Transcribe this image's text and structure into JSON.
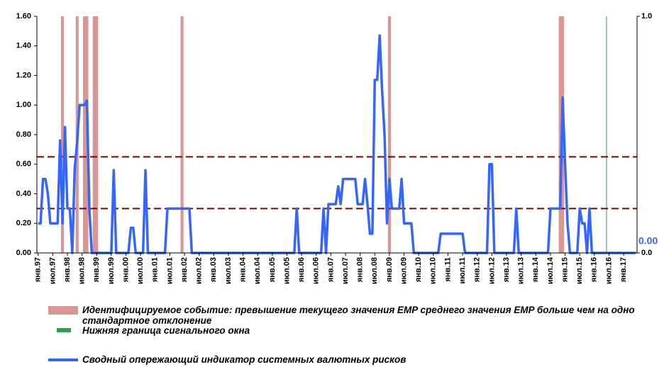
{
  "chart_data": {
    "type": "line",
    "categories": [
      "янв.97",
      null,
      null,
      null,
      null,
      null,
      "июл.97",
      null,
      null,
      null,
      null,
      null,
      "янв.98",
      null,
      null,
      null,
      null,
      null,
      "июл.98",
      null,
      null,
      null,
      null,
      null,
      "янв.99",
      null,
      null,
      null,
      null,
      null,
      "июл.99",
      null,
      null,
      null,
      null,
      null,
      "янв.00",
      null,
      null,
      null,
      null,
      null,
      "июл.00",
      null,
      null,
      null,
      null,
      null,
      "янв.01",
      null,
      null,
      null,
      null,
      null,
      "июл.01",
      null,
      null,
      null,
      null,
      null,
      "янв.02",
      null,
      null,
      null,
      null,
      null,
      "июл.02",
      null,
      null,
      null,
      null,
      null,
      "янв.03",
      null,
      null,
      null,
      null,
      null,
      "июл.03",
      null,
      null,
      null,
      null,
      null,
      "янв.04",
      null,
      null,
      null,
      null,
      null,
      "июл.04",
      null,
      null,
      null,
      null,
      null,
      "янв.05",
      null,
      null,
      null,
      null,
      null,
      "июл.05",
      null,
      null,
      null,
      null,
      null,
      "янв.06",
      null,
      null,
      null,
      null,
      null,
      "июл.06",
      null,
      null,
      null,
      null,
      null,
      "янв.07",
      null,
      null,
      null,
      null,
      null,
      "июл.07",
      null,
      null,
      null,
      null,
      null,
      "янв.08",
      null,
      null,
      null,
      null,
      null,
      "июл.08",
      null,
      null,
      null,
      null,
      null,
      "янв.09",
      null,
      null,
      null,
      null,
      null,
      "июл.09",
      null,
      null,
      null,
      null,
      null,
      "янв.10",
      null,
      null,
      null,
      null,
      null,
      "июл.10",
      null,
      null,
      null,
      null,
      null,
      "янв.11",
      null,
      null,
      null,
      null,
      null,
      "июл.11",
      null,
      null,
      null,
      null,
      null,
      "янв.12",
      null,
      null,
      null,
      null,
      null,
      "июл.12",
      null,
      null,
      null,
      null,
      null,
      "янв.13",
      null,
      null,
      null,
      null,
      null,
      "июл.13",
      null,
      null,
      null,
      null,
      null,
      "янв.14",
      null,
      null,
      null,
      null,
      null,
      "июл.14",
      null,
      null,
      null,
      null,
      null,
      "янв.15",
      null,
      null,
      null,
      null,
      null,
      "июл.15",
      null,
      null,
      null,
      null,
      null,
      "янв.16",
      null,
      null,
      null,
      null,
      null,
      "июл.16",
      null,
      null,
      null,
      null,
      null,
      "янв.17",
      null,
      null,
      null,
      null,
      null
    ],
    "series": [
      {
        "name": "Идентифицируемое событие: превышение текущего значения EMP среднего значения EMP больше чем на одно стандартное отклонение",
        "type": "bar",
        "axis": "y2",
        "color": "#d99694",
        "values": [
          0,
          0,
          0,
          0,
          0,
          0,
          0,
          0,
          0,
          0,
          1,
          0,
          0,
          0,
          0,
          0,
          1,
          0,
          0,
          1,
          1,
          0,
          0,
          1,
          1,
          0,
          0,
          0,
          0,
          0,
          0,
          0,
          0,
          0,
          0,
          0,
          0,
          0,
          0,
          0,
          0,
          0,
          0,
          0,
          0,
          0,
          0,
          0,
          0,
          0,
          0,
          0,
          0,
          0,
          0,
          0,
          0,
          0,
          0,
          1,
          0,
          0,
          0,
          0,
          0,
          0,
          0,
          0,
          0,
          0,
          0,
          0,
          0,
          0,
          0,
          0,
          0,
          0,
          0,
          0,
          0,
          0,
          0,
          0,
          0,
          0,
          0,
          0,
          0,
          0,
          0,
          0,
          0,
          0,
          0,
          0,
          0,
          0,
          0,
          0,
          0,
          0,
          0,
          0,
          0,
          0,
          0,
          0,
          0,
          0,
          0,
          0,
          0,
          0,
          0,
          0,
          0,
          0,
          0,
          0,
          0,
          0,
          0,
          0,
          0,
          0,
          0,
          0,
          0,
          0,
          0,
          0,
          0,
          0,
          0,
          0,
          0,
          0,
          0,
          0,
          0,
          0,
          0,
          0,
          1,
          0,
          0,
          0,
          0,
          0,
          0,
          0,
          0,
          0,
          0,
          0,
          0,
          0,
          0,
          0,
          0,
          0,
          0,
          0,
          0,
          0,
          0,
          0,
          0,
          0,
          0,
          0,
          0,
          0,
          0,
          0,
          0,
          0,
          0,
          0,
          0,
          0,
          0,
          0,
          0,
          0,
          0,
          0,
          0,
          0,
          0,
          0,
          0,
          0,
          0,
          0,
          0,
          0,
          0,
          0,
          0,
          0,
          0,
          0,
          0,
          0,
          0,
          0,
          0,
          0,
          0,
          0,
          0,
          0,
          1,
          1,
          0,
          0,
          0,
          0,
          0,
          0,
          0,
          0,
          0,
          0,
          0,
          0,
          0,
          0,
          0,
          0,
          0,
          0,
          0,
          0,
          0,
          0,
          0,
          0,
          0,
          0,
          0,
          0,
          0,
          0
        ]
      },
      {
        "name": "Нижняя граница сигнального окна",
        "type": "bar",
        "axis": "y2",
        "color": "#2e9e4f",
        "values": [
          0,
          0,
          0,
          0,
          0,
          0,
          0,
          0,
          0,
          0,
          0,
          0,
          0,
          0,
          0,
          0,
          0,
          0,
          0,
          0,
          0,
          0,
          0,
          0,
          0,
          0,
          0,
          0,
          0,
          0,
          0,
          0,
          0,
          0,
          0,
          0,
          0,
          0,
          0,
          0,
          0,
          0,
          0,
          0,
          0,
          0,
          0,
          0,
          0,
          0,
          0,
          0,
          0,
          0,
          0,
          0,
          0,
          0,
          0,
          0,
          0,
          0,
          0,
          0,
          0,
          0,
          0,
          0,
          0,
          0,
          0,
          0,
          0,
          0,
          0,
          0,
          0,
          0,
          0,
          0,
          0,
          0,
          0,
          0,
          0,
          0,
          0,
          0,
          0,
          0,
          0,
          0,
          0,
          0,
          0,
          0,
          0,
          0,
          0,
          0,
          0,
          0,
          0,
          0,
          0,
          0,
          0,
          0,
          0,
          0,
          0,
          0,
          0,
          0,
          0,
          0,
          0,
          0,
          0,
          0,
          0,
          0,
          0,
          0,
          0,
          0,
          0,
          0,
          0,
          0,
          0,
          0,
          0,
          0,
          0,
          0,
          0,
          0,
          0,
          0,
          0,
          0,
          0,
          0,
          0,
          0,
          0,
          0,
          0,
          0,
          0,
          0,
          0,
          0,
          0,
          0,
          0,
          0,
          0,
          0,
          0,
          0,
          0,
          0,
          0,
          0,
          0,
          0,
          0,
          0,
          0,
          0,
          0,
          0,
          0,
          0,
          0,
          0,
          0,
          0,
          0,
          0,
          0,
          0,
          0,
          0,
          0,
          0,
          0,
          0,
          0,
          0,
          0,
          0,
          0,
          0,
          0,
          0,
          0,
          0,
          0,
          0,
          0,
          0,
          0,
          0,
          0,
          0,
          0,
          0,
          0,
          0,
          0,
          0,
          0,
          0,
          0,
          0,
          0,
          0,
          0,
          0,
          0,
          0,
          0,
          0,
          0,
          0,
          0,
          0,
          0,
          0,
          0,
          1,
          0,
          0,
          0,
          0,
          0,
          0,
          0,
          0,
          0,
          0,
          0,
          0
        ]
      },
      {
        "name": "Сводный опережающий индикатор системных валютных рисков",
        "type": "line",
        "color": "#3366ff",
        "end_label": "0.00",
        "values": [
          0.2,
          0.2,
          0.5,
          0.5,
          0.4,
          0.2,
          0.2,
          0.2,
          0.2,
          0.76,
          0.2,
          0.85,
          0.3,
          0.3,
          0,
          0.57,
          0.75,
          1.0,
          1.0,
          1.0,
          1.03,
          0.3,
          0,
          0,
          0,
          0,
          0,
          0,
          0,
          0,
          0,
          0.56,
          0,
          0,
          0,
          0,
          0,
          0,
          0.17,
          0.17,
          0,
          0,
          0,
          0,
          0.56,
          0,
          0,
          0,
          0,
          0,
          0,
          0,
          0,
          0.3,
          0.3,
          0.3,
          0.3,
          0.3,
          0.3,
          0.3,
          0.3,
          0.3,
          0.3,
          0,
          0,
          0,
          0,
          0,
          0,
          0,
          0,
          0,
          0,
          0,
          0,
          0,
          0,
          0,
          0,
          0,
          0,
          0,
          0,
          0,
          0,
          0,
          0,
          0,
          0,
          0,
          0,
          0,
          0,
          0,
          0,
          0,
          0,
          0,
          0,
          0,
          0,
          0,
          0,
          0,
          0,
          0,
          0.3,
          0,
          0,
          0,
          0,
          0,
          0,
          0,
          0,
          0,
          0,
          0.3,
          0,
          0.33,
          0.33,
          0.33,
          0.33,
          0.45,
          0.33,
          0.5,
          0.5,
          0.5,
          0.5,
          0.5,
          0.5,
          0.33,
          0.33,
          0.33,
          0.5,
          0.33,
          0.13,
          0.13,
          1.17,
          1.17,
          1.47,
          1.1,
          0.8,
          0.2,
          0.5,
          0.3,
          0.3,
          0.3,
          0.3,
          0.5,
          0.2,
          0.2,
          0.2,
          0.2,
          0,
          0,
          0,
          0,
          0,
          0,
          0,
          0,
          0,
          0,
          0,
          0.13,
          0.13,
          0.13,
          0.13,
          0.13,
          0.13,
          0.13,
          0.13,
          0.13,
          0.13,
          0,
          0,
          0,
          0,
          0,
          0,
          0,
          0,
          0,
          0,
          0.6,
          0.6,
          0,
          0,
          0,
          0,
          0,
          0,
          0,
          0,
          0,
          0.3,
          0,
          0,
          0,
          0,
          0,
          0,
          0,
          0,
          0,
          0,
          0,
          0,
          0,
          0.3,
          0.3,
          0.3,
          0.3,
          0.3,
          1.05,
          0.6,
          0.2,
          0,
          0,
          0,
          0,
          0.3,
          0.2,
          0.2,
          0,
          0.3,
          0,
          0,
          0,
          0,
          0,
          0,
          0,
          0,
          0,
          0,
          0,
          0,
          0,
          0,
          0,
          0,
          0,
          0,
          0
        ]
      }
    ],
    "ylim": [
      0,
      1.6
    ],
    "yticks": [
      {
        "value": 0,
        "label": "0.00"
      },
      {
        "value": 0.2,
        "label": "0.20"
      },
      {
        "value": 0.4,
        "label": "0.40"
      },
      {
        "value": 0.6,
        "label": "0.60"
      },
      {
        "value": 0.8,
        "label": "0.80"
      },
      {
        "value": 1.0,
        "label": "1.00"
      },
      {
        "value": 1.2,
        "label": "1.20"
      },
      {
        "value": 1.4,
        "label": "1.40"
      },
      {
        "value": 1.6,
        "label": "1.60"
      }
    ],
    "y2lim": [
      0,
      1
    ],
    "y2ticks": [
      {
        "value": 0,
        "label": "0.0"
      },
      {
        "value": 1,
        "label": "1.0"
      }
    ],
    "reference_lines": [
      0.65,
      0.3
    ],
    "reference_color": "#7f0000"
  }
}
